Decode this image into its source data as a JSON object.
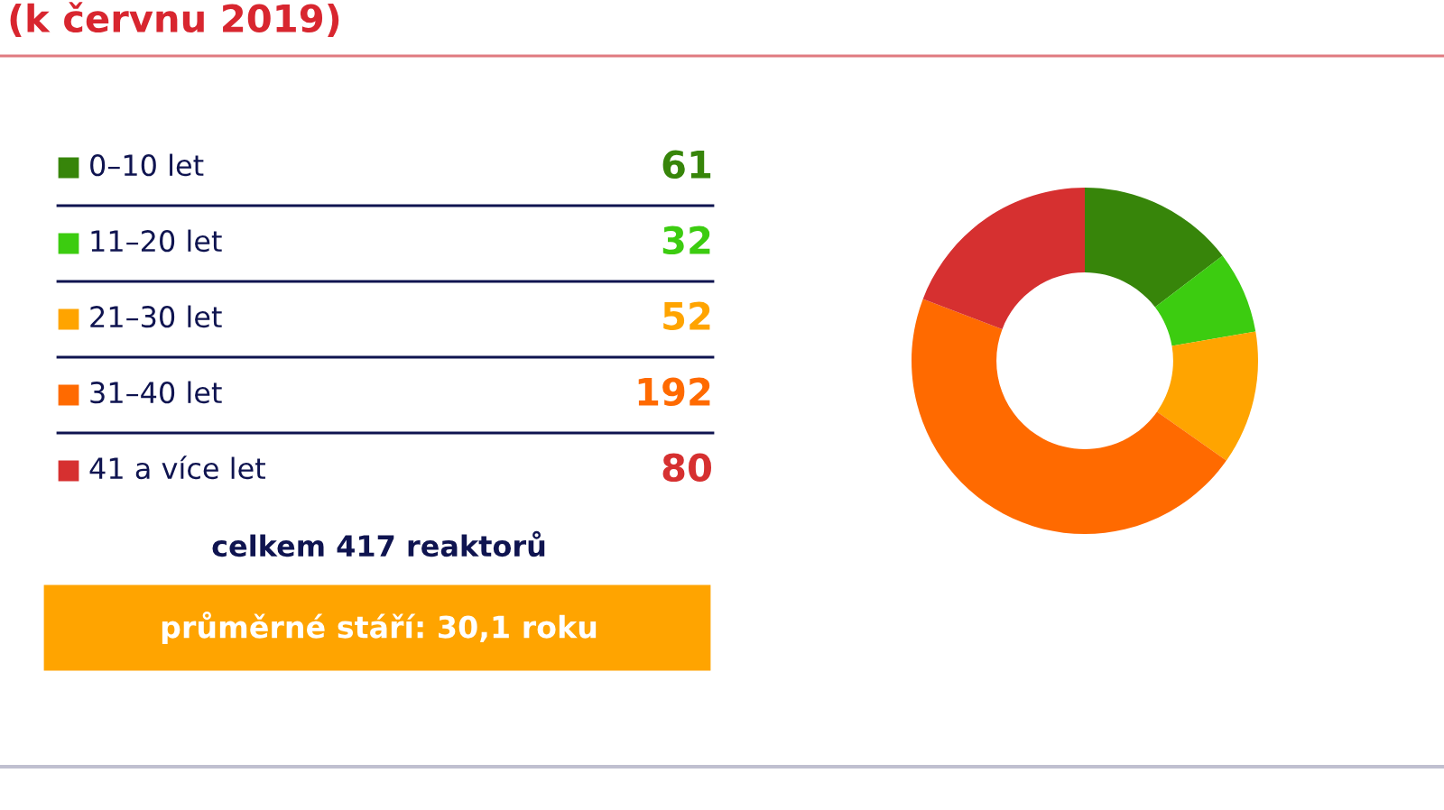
{
  "chart_data": {
    "type": "donut",
    "title": "(k červnu 2019)",
    "categories": [
      "0–10 let",
      "11–20 let",
      "21–30 let",
      "31–40 let",
      "41 a více let"
    ],
    "values": [
      61,
      32,
      52,
      192,
      80
    ],
    "colors": [
      "#37850a",
      "#3ccc10",
      "#ffa400",
      "#ff6a00",
      "#d63030"
    ],
    "data_labels": true,
    "legend": "left",
    "annotations": [
      "celkem 417 reaktorů",
      "průměrné stáří: 30,1 roku"
    ]
  }
}
